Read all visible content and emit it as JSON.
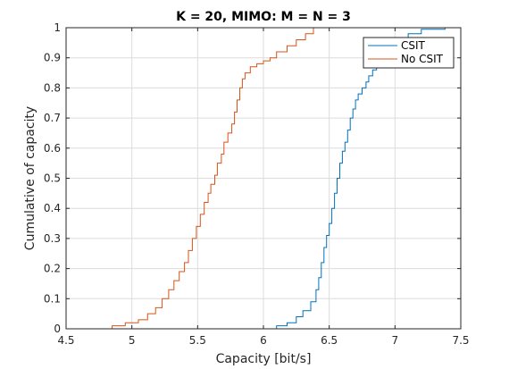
{
  "chart_data": {
    "type": "line",
    "title": "K = 20, MIMO: M = N = 3",
    "xlabel": "Capacity [bit/s]",
    "ylabel": "Cumulative of capacity",
    "xlim": [
      4.5,
      7.5
    ],
    "ylim": [
      0,
      1
    ],
    "xticks": [
      "4.5",
      "5",
      "5.5",
      "6",
      "6.5",
      "7",
      "7.5"
    ],
    "yticks": [
      "0",
      "0.1",
      "0.2",
      "0.3",
      "0.4",
      "0.5",
      "0.6",
      "0.7",
      "0.8",
      "0.9",
      "1"
    ],
    "grid": true,
    "legend_position": "top-right",
    "series": [
      {
        "name": "CSIT",
        "color": "#0072BD",
        "step": true,
        "x": [
          6.02,
          6.1,
          6.18,
          6.25,
          6.3,
          6.36,
          6.4,
          6.42,
          6.44,
          6.46,
          6.48,
          6.5,
          6.52,
          6.54,
          6.56,
          6.58,
          6.6,
          6.62,
          6.64,
          6.66,
          6.68,
          6.7,
          6.72,
          6.75,
          6.78,
          6.8,
          6.83,
          6.86,
          6.9,
          6.95,
          7.0,
          7.1,
          7.2,
          7.38
        ],
        "y": [
          0.0,
          0.01,
          0.02,
          0.04,
          0.06,
          0.09,
          0.13,
          0.17,
          0.22,
          0.27,
          0.31,
          0.35,
          0.4,
          0.45,
          0.5,
          0.55,
          0.59,
          0.62,
          0.66,
          0.7,
          0.73,
          0.76,
          0.78,
          0.8,
          0.82,
          0.84,
          0.86,
          0.88,
          0.91,
          0.94,
          0.96,
          0.98,
          0.995,
          1.0
        ]
      },
      {
        "name": "No CSIT",
        "color": "#D95319",
        "step": true,
        "x": [
          4.78,
          4.85,
          4.95,
          5.05,
          5.12,
          5.18,
          5.23,
          5.28,
          5.32,
          5.36,
          5.4,
          5.43,
          5.46,
          5.49,
          5.52,
          5.55,
          5.58,
          5.6,
          5.63,
          5.65,
          5.68,
          5.7,
          5.73,
          5.76,
          5.78,
          5.8,
          5.82,
          5.84,
          5.86,
          5.9,
          5.95,
          6.0,
          6.05,
          6.1,
          6.18,
          6.25,
          6.32,
          6.38
        ],
        "y": [
          0.0,
          0.01,
          0.02,
          0.03,
          0.05,
          0.07,
          0.1,
          0.13,
          0.16,
          0.19,
          0.22,
          0.26,
          0.3,
          0.34,
          0.38,
          0.42,
          0.45,
          0.48,
          0.51,
          0.55,
          0.58,
          0.62,
          0.65,
          0.68,
          0.72,
          0.76,
          0.8,
          0.83,
          0.85,
          0.87,
          0.88,
          0.89,
          0.9,
          0.92,
          0.94,
          0.96,
          0.98,
          1.0
        ]
      }
    ]
  }
}
